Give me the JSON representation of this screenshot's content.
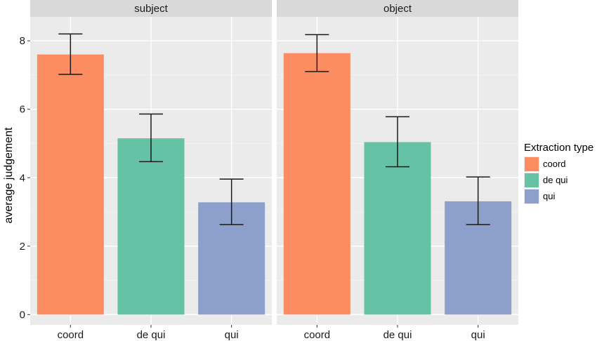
{
  "chart_data": {
    "type": "bar",
    "panels": [
      "subject",
      "object"
    ],
    "categories": [
      "coord",
      "de qui",
      "qui"
    ],
    "series": [
      {
        "panel": "subject",
        "values": [
          7.6,
          5.15,
          3.28
        ],
        "error_low": [
          7.02,
          4.47,
          2.63
        ],
        "error_high": [
          8.2,
          5.86,
          3.96
        ]
      },
      {
        "panel": "object",
        "values": [
          7.64,
          5.04,
          3.31
        ],
        "error_low": [
          7.1,
          4.32,
          2.63
        ],
        "error_high": [
          8.18,
          5.78,
          4.02
        ]
      }
    ],
    "colors": {
      "coord": "#FC8D62",
      "de qui": "#66C2A5",
      "qui": "#8DA0CB"
    },
    "ylabel": "average judgement",
    "xlabel": "",
    "ylim": [
      -0.3,
      8.7
    ],
    "yticks": [
      0,
      2,
      4,
      6,
      8
    ],
    "legend": {
      "title": "Extraction type",
      "entries": [
        "coord",
        "de qui",
        "qui"
      ],
      "position": "right"
    },
    "grid": true,
    "panel_background": "#EBEBEB",
    "strip_background": "#D9D9D9"
  }
}
